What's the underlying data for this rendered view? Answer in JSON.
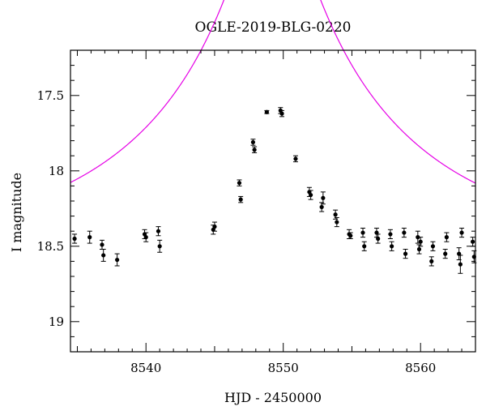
{
  "chart_data": {
    "type": "scatter",
    "title": "OGLE-2019-BLG-0220",
    "xlabel": "HJD - 2450000",
    "ylabel": "I magnitude",
    "xlim": [
      8534.5,
      8564
    ],
    "ylim": [
      19.2,
      17.2
    ],
    "y_inverted": true,
    "grid": false,
    "x_ticks": [
      8540,
      8550,
      8560
    ],
    "x_tick_labels": [
      "8540",
      "8550",
      "8560"
    ],
    "y_ticks": [
      17.5,
      18,
      18.5,
      19
    ],
    "y_tick_labels": [
      "17.5",
      "18",
      "18.5",
      "19"
    ],
    "colors": {
      "points": "#000000",
      "model": "#e600e6",
      "axes": "#000000"
    },
    "series": [
      {
        "kind": "points",
        "x": [
          8534.8,
          8535.9,
          8536.8,
          8536.9,
          8537.9,
          8539.9,
          8540.0,
          8540.9,
          8541.0,
          8544.9,
          8545.0,
          8546.8,
          8546.9,
          8547.8,
          8547.9,
          8548.8,
          8549.8,
          8549.9,
          8550.9,
          8551.9,
          8552.0,
          8552.8,
          8552.9,
          8553.8,
          8553.9,
          8554.8,
          8554.9,
          8555.8,
          8555.9,
          8556.8,
          8556.9,
          8557.8,
          8557.9,
          8558.8,
          8558.9,
          8559.8,
          8559.9,
          8560.0,
          8560.8,
          8560.9,
          8561.8,
          8561.9,
          8562.8,
          8562.9,
          8563.0,
          8563.8,
          8563.9
        ],
        "y": [
          18.45,
          18.44,
          18.49,
          18.56,
          18.59,
          18.42,
          18.44,
          18.4,
          18.5,
          18.39,
          18.37,
          18.08,
          18.19,
          17.81,
          17.86,
          17.61,
          17.6,
          17.62,
          17.92,
          18.14,
          18.16,
          18.24,
          18.18,
          18.29,
          18.34,
          18.42,
          18.43,
          18.41,
          18.5,
          18.41,
          18.45,
          18.42,
          18.5,
          18.41,
          18.55,
          18.44,
          18.52,
          18.47,
          18.6,
          18.5,
          18.55,
          18.44,
          18.55,
          18.62,
          18.41,
          18.47,
          18.57
        ],
        "yerr": [
          0.03,
          0.04,
          0.03,
          0.04,
          0.04,
          0.03,
          0.03,
          0.03,
          0.04,
          0.03,
          0.03,
          0.02,
          0.02,
          0.02,
          0.02,
          0.01,
          0.02,
          0.02,
          0.02,
          0.03,
          0.03,
          0.03,
          0.04,
          0.03,
          0.03,
          0.03,
          0.02,
          0.03,
          0.03,
          0.03,
          0.03,
          0.03,
          0.03,
          0.03,
          0.03,
          0.04,
          0.03,
          0.03,
          0.03,
          0.03,
          0.03,
          0.03,
          0.04,
          0.06,
          0.03,
          0.03,
          0.04
        ]
      },
      {
        "kind": "model",
        "t0": 8549.2,
        "u0": 0.105,
        "tE": 18.0,
        "m_base": 18.52
      }
    ]
  }
}
